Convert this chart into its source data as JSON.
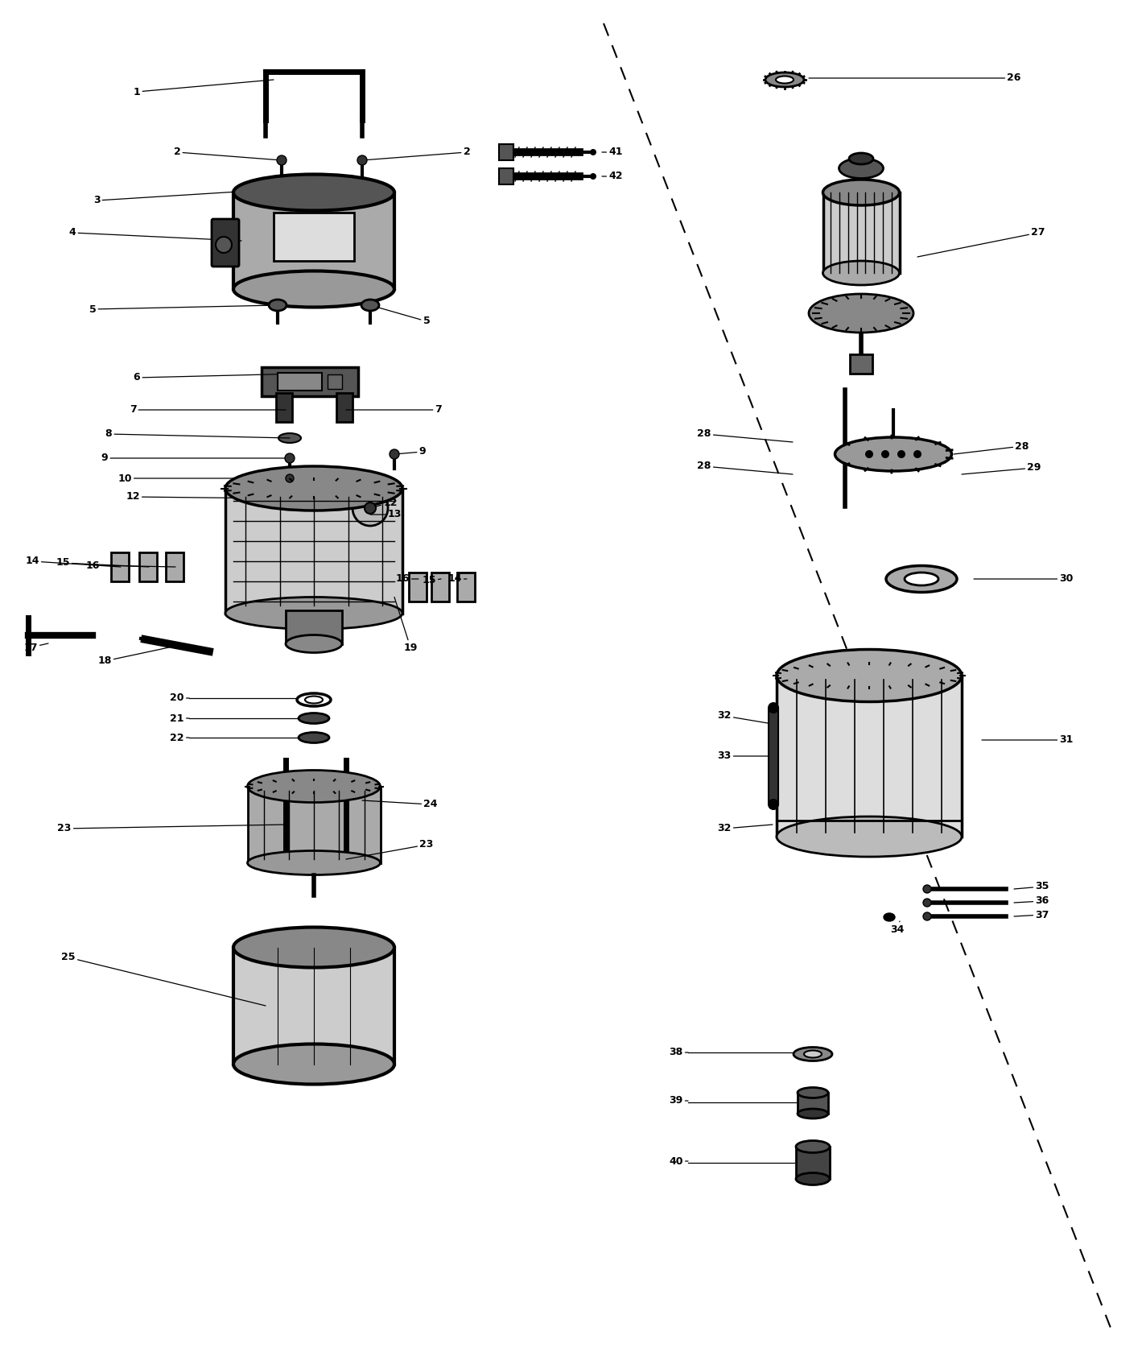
{
  "bg_color": "#ffffff",
  "fig_width": 14.19,
  "fig_height": 16.79,
  "dpi": 100,
  "label_fontsize": 9,
  "label_fontweight": "bold",
  "line_color": "black",
  "part_fill": "#888888",
  "part_fill_dark": "#333333",
  "part_fill_light": "#cccccc"
}
